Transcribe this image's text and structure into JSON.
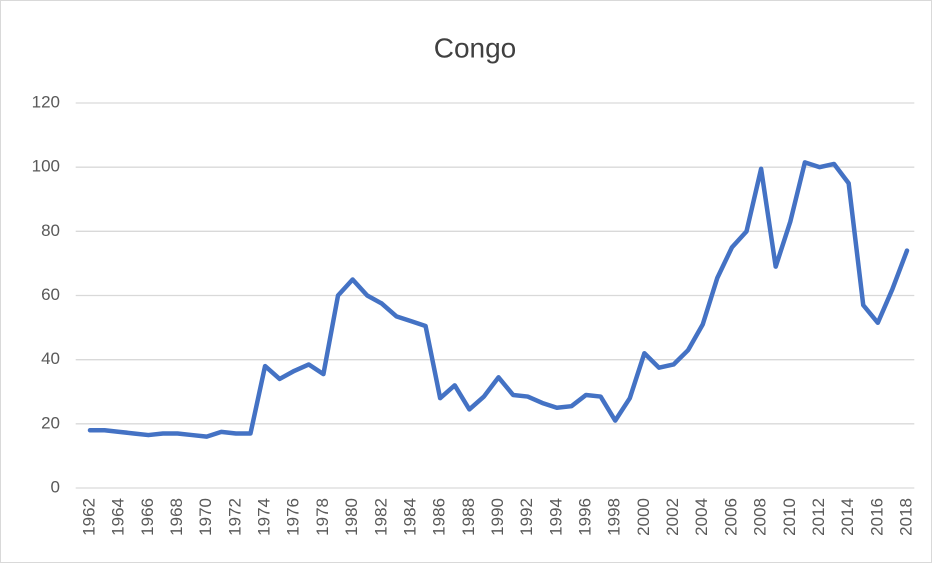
{
  "chart_data": {
    "type": "line",
    "title": "Congo",
    "categories": [
      "1962",
      null,
      "1964",
      null,
      "1966",
      null,
      "1968",
      null,
      "1970",
      null,
      "1972",
      null,
      "1974",
      null,
      "1976",
      null,
      "1978",
      null,
      "1980",
      null,
      "1982",
      null,
      "1984",
      null,
      "1986",
      null,
      "1988",
      null,
      "1990",
      null,
      "1992",
      null,
      "1994",
      null,
      "1996",
      null,
      "1998",
      null,
      "2000",
      null,
      "2002",
      null,
      "2004",
      null,
      "2006",
      null,
      "2008",
      null,
      "2010",
      null,
      "2012",
      null,
      "2014",
      null,
      "2016",
      null,
      "2018"
    ],
    "series": [
      {
        "name": "Congo",
        "color": "#4472c4",
        "values": [
          18,
          18,
          17.5,
          17,
          16.5,
          17,
          17,
          16.5,
          16,
          17.5,
          17,
          17,
          38,
          34,
          36.5,
          38.5,
          35.5,
          60,
          65,
          60,
          57.5,
          53.5,
          52,
          50.5,
          28,
          32,
          24.5,
          28.5,
          34.5,
          29,
          28.5,
          26.5,
          25,
          25.5,
          29,
          28.5,
          21,
          28,
          42,
          37.5,
          38.5,
          43,
          51,
          65.5,
          75,
          80,
          99.5,
          69,
          83,
          101.5,
          100,
          101,
          95,
          57,
          51.5,
          62,
          74
        ]
      }
    ],
    "ylim": [
      0,
      120
    ],
    "yticks": [
      0,
      20,
      40,
      60,
      80,
      100,
      120
    ],
    "grid": true
  }
}
